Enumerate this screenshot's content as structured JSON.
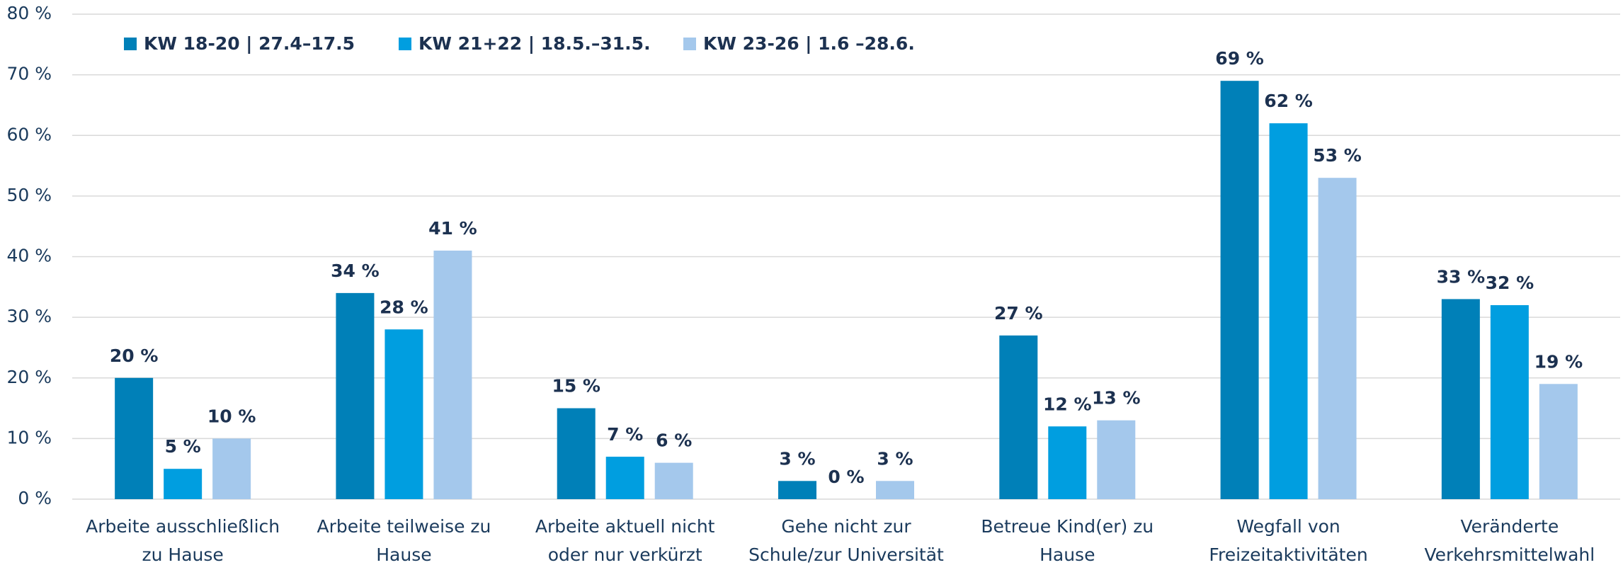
{
  "chart_data": {
    "type": "bar",
    "categories": [
      [
        "Arbeite ausschließlich",
        "zu Hause"
      ],
      [
        "Arbeite teilweise zu",
        "Hause"
      ],
      [
        "Arbeite aktuell nicht",
        "oder nur verkürzt"
      ],
      [
        "Gehe nicht zur",
        "Schule/zur Universität"
      ],
      [
        "Betreue Kind(er) zu",
        "Hause"
      ],
      [
        "Wegfall von",
        "Freizeitaktivitäten"
      ],
      [
        "Veränderte",
        "Verkehrsmittelwahl"
      ]
    ],
    "series": [
      {
        "name": "KW 18-20 | 27.4–17.5",
        "color": "#0080b8",
        "values": [
          20,
          34,
          15,
          3,
          27,
          69,
          33
        ],
        "value_labels": [
          "20 %",
          "34 %",
          "15 %",
          "3 %",
          "27 %",
          "69 %",
          "33 %"
        ]
      },
      {
        "name": "KW 21+22 | 18.5.–31.5.",
        "color": "#009ee0",
        "values": [
          5,
          28,
          7,
          0,
          12,
          62,
          32
        ],
        "value_labels": [
          "5 %",
          "28 %",
          "7 %",
          "0 %",
          "12 %",
          "62 %",
          "32 %"
        ]
      },
      {
        "name": "KW 23-26 | 1.6 –28.6.",
        "color": "#a4c8ec",
        "values": [
          10,
          41,
          6,
          3,
          13,
          53,
          19
        ],
        "value_labels": [
          "10 %",
          "41 %",
          "6 %",
          "3 %",
          "13 %",
          "53 %",
          "19 %"
        ]
      }
    ],
    "ylim": [
      0,
      80
    ],
    "yticks": [
      {
        "value": 0,
        "label": "0 %"
      },
      {
        "value": 10,
        "label": "10 %"
      },
      {
        "value": 20,
        "label": "20 %"
      },
      {
        "value": 30,
        "label": "30 %"
      },
      {
        "value": 40,
        "label": "40 %"
      },
      {
        "value": 50,
        "label": "50 %"
      },
      {
        "value": 60,
        "label": "60 %"
      },
      {
        "value": 70,
        "label": "70 %"
      },
      {
        "value": 80,
        "label": "80 %"
      }
    ],
    "grid": true,
    "legend": "top-left"
  }
}
